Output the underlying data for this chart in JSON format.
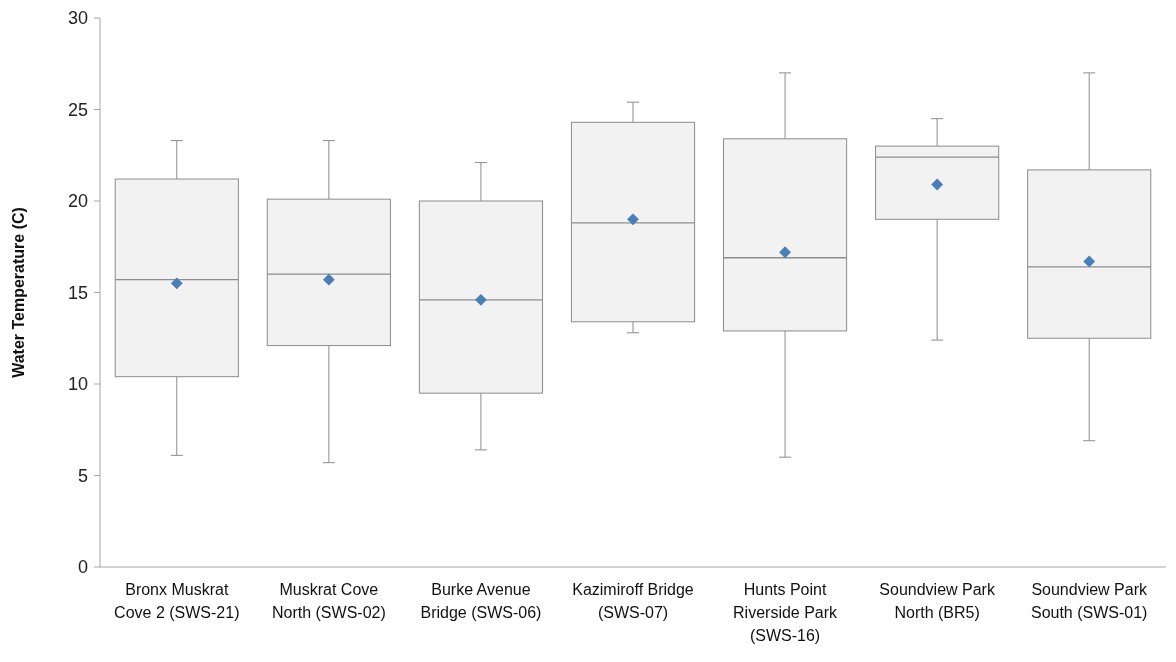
{
  "chart_data": {
    "type": "box",
    "ylabel": "Water Temperature (C)",
    "categories": [
      "Bronx Muskrat Cove 2 (SWS-21)",
      "Muskrat Cove North (SWS-02)",
      "Burke Avenue Bridge (SWS-06)",
      "Kazimiroff Bridge (SWS-07)",
      "Hunts Point Riverside Park (SWS-16)",
      "Soundview Park North  (BR5)",
      "Soundview Park South (SWS-01)"
    ],
    "series": [
      {
        "color": "#f2f2f2",
        "boxes": [
          {
            "low": 6.1,
            "q1": 10.4,
            "median": 15.7,
            "q3": 21.2,
            "high": 23.3,
            "mean": 15.5
          },
          {
            "low": 5.7,
            "q1": 12.1,
            "median": 16.0,
            "q3": 20.1,
            "high": 23.3,
            "mean": 15.7
          },
          {
            "low": 6.4,
            "q1": 9.5,
            "median": 14.6,
            "q3": 20.0,
            "high": 22.1,
            "mean": 14.6
          },
          {
            "low": 12.8,
            "q1": 13.4,
            "median": 18.8,
            "q3": 24.3,
            "high": 25.4,
            "mean": 19.0
          },
          {
            "low": 6.0,
            "q1": 12.9,
            "median": 16.9,
            "q3": 23.4,
            "high": 27.0,
            "mean": 17.2
          },
          {
            "low": 12.4,
            "q1": 19.0,
            "median": 22.4,
            "q3": 23.0,
            "high": 24.5,
            "mean": 20.9
          },
          {
            "low": 6.9,
            "q1": 12.5,
            "median": 16.4,
            "q3": 21.7,
            "high": 27.0,
            "mean": 16.7
          }
        ]
      }
    ],
    "ylim": [
      0,
      30
    ],
    "yticks": [
      0,
      5,
      10,
      15,
      20,
      25,
      30
    ],
    "grid": false,
    "marker": "diamond"
  }
}
